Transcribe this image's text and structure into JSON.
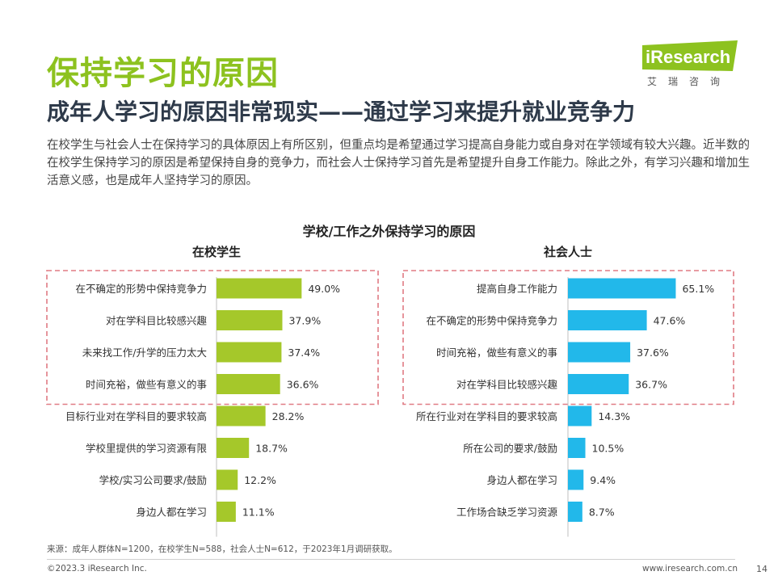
{
  "header": {
    "title": "保持学习的原因",
    "subtitle": "成年人学习的原因非常现实——通过学习来提升就业竞争力",
    "intro": "在校学生与社会人士在保持学习的具体原因上有所区别，但重点均是希望通过学习提高自身能力或自身对在学领域有较大兴趣。近半数的在校学生保持学习的原因是希望保持自身的竞争力，而社会人士保持学习首先是希望提升自身工作能力。除此之外，有学习兴趣和增加生活意义感，也是成年人坚持学习的原因。"
  },
  "logo": {
    "name": "iResearch",
    "cn": "艾瑞咨询",
    "color": "#8dc21f"
  },
  "chart_data": {
    "type": "bar",
    "title": "学校/工作之外保持学习的原因",
    "panels": [
      {
        "name": "在校学生",
        "color": "#a5c82a",
        "categories": [
          "在不确定的形势中保持竞争力",
          "对在学科目比较感兴趣",
          "未来找工作/升学的压力太大",
          "时间充裕，做些有意义的事",
          "目标行业对在学科目的要求较高",
          "学校里提供的学习资源有限",
          "学校/实习公司要求/鼓励",
          "身边人都在学习"
        ],
        "values": [
          49.0,
          37.9,
          37.4,
          36.6,
          28.2,
          18.7,
          12.2,
          11.1
        ],
        "labels": [
          "49.0%",
          "37.9%",
          "37.4%",
          "36.6%",
          "28.2%",
          "18.7%",
          "12.2%",
          "11.1%"
        ],
        "highlight_top": 4
      },
      {
        "name": "社会人士",
        "color": "#22b8ea",
        "categories": [
          "提高自身工作能力",
          "在不确定的形势中保持竞争力",
          "时间充裕，做些有意义的事",
          "对在学科目比较感兴趣",
          "所在行业对在学科目的要求较高",
          "所在公司的要求/鼓励",
          "身边人都在学习",
          "工作场合缺乏学习资源"
        ],
        "values": [
          65.1,
          47.6,
          37.6,
          36.7,
          14.3,
          10.5,
          9.4,
          8.7
        ],
        "labels": [
          "65.1%",
          "47.6%",
          "37.6%",
          "36.7%",
          "14.3%",
          "10.5%",
          "9.4%",
          "8.7%"
        ],
        "highlight_top": 4
      }
    ],
    "highlight_color": "#e07b84"
  },
  "footer": {
    "source": "来源：成年人群体N=1200，在校学生N=588，社会人士N=612，于2023年1月调研获取。",
    "copyright": "©2023.3 iResearch Inc.",
    "url": "www.iresearch.com.cn",
    "page": "14"
  }
}
